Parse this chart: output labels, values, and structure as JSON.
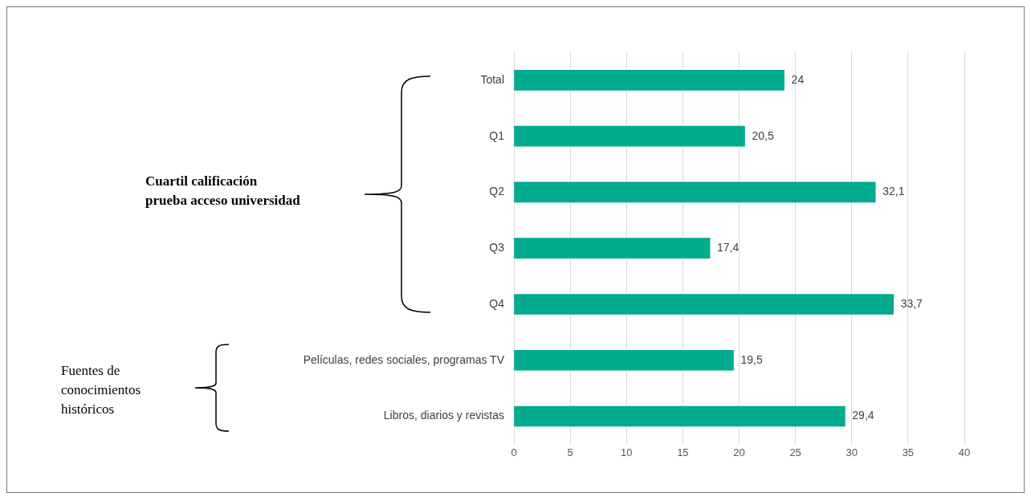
{
  "chart_data": {
    "type": "bar",
    "orientation": "horizontal",
    "categories": [
      "Total",
      "Q1",
      "Q2",
      "Q3",
      "Q4",
      "Películas, redes sociales, programas TV",
      "Libros, diarios y revistas"
    ],
    "values": [
      24,
      20.5,
      32.1,
      17.4,
      33.7,
      19.5,
      29.4
    ],
    "value_labels": [
      "24",
      "20,5",
      "32,1",
      "17,4",
      "33,7",
      "19,5",
      "29,4"
    ],
    "color": "#00ab8e",
    "xlim": [
      0,
      40
    ],
    "xticks": [
      0,
      5,
      10,
      15,
      20,
      25,
      30,
      35,
      40
    ],
    "grid": "x",
    "legend": false,
    "annotations": [
      "Cuartil calificación\nprueba acceso universidad",
      "Fuentes de conocimientos históricos"
    ]
  }
}
